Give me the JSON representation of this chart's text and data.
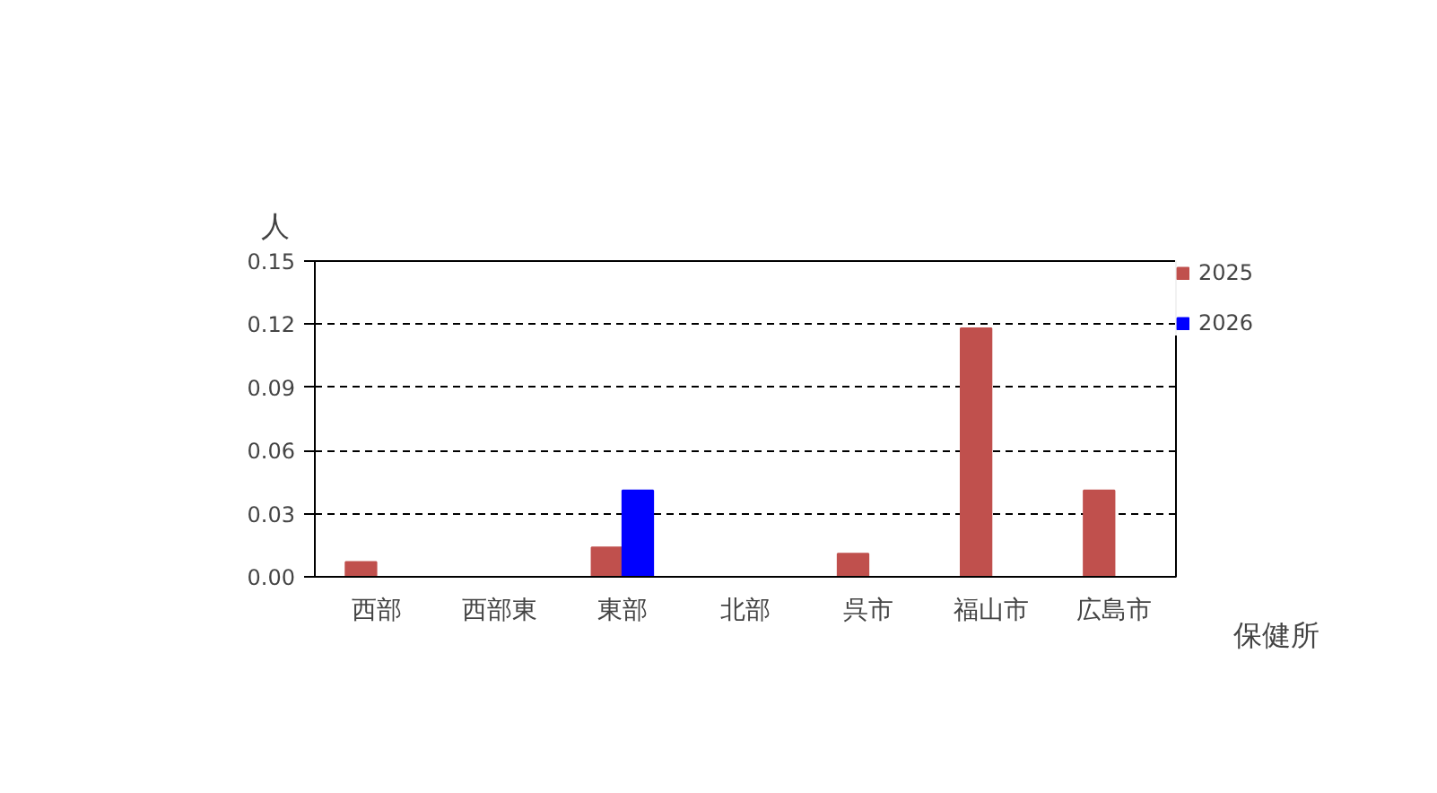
{
  "chart_data": {
    "type": "bar",
    "ylabel": "人",
    "xlabel": "保健所",
    "categories": [
      "西部",
      "西部東",
      "東部",
      "北部",
      "呉市",
      "福山市",
      "広島市"
    ],
    "series": [
      {
        "name": "2025",
        "color": "#c0504d",
        "values": [
          0.007,
          0,
          0.014,
          0,
          0.011,
          0.118,
          0.041
        ]
      },
      {
        "name": "2026",
        "color": "#0000ff",
        "values": [
          0,
          0,
          0.041,
          0,
          0,
          0,
          0
        ]
      }
    ],
    "ylim": [
      0,
      0.15
    ],
    "yticks": [
      {
        "value": 0,
        "label": "0.00"
      },
      0.03,
      0.06,
      0.09,
      0.12,
      0.15
    ],
    "grid": "y",
    "legend": "right"
  }
}
